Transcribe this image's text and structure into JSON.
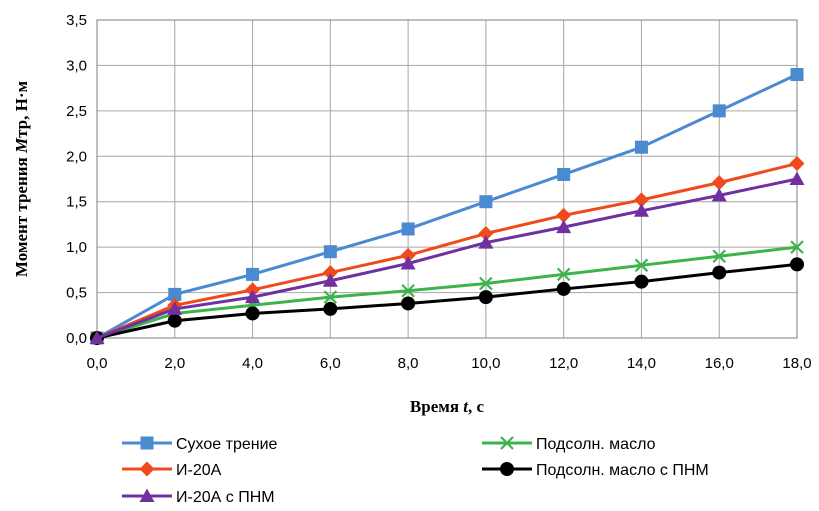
{
  "chart_data": {
    "type": "line",
    "title": "",
    "xlabel_parts": [
      "Время ",
      "t",
      ", с"
    ],
    "ylabel_parts": [
      "Момент трения ",
      "M",
      "тр, Н·м"
    ],
    "x": [
      0,
      2,
      4,
      6,
      8,
      10,
      12,
      14,
      16,
      18
    ],
    "xlim": [
      0,
      18
    ],
    "ylim": [
      0,
      3.5
    ],
    "xticks": [
      "0,0",
      "2,0",
      "4,0",
      "6,0",
      "8,0",
      "10,0",
      "12,0",
      "14,0",
      "16,0",
      "18,0"
    ],
    "yticks": [
      "0,0",
      "0,5",
      "1,0",
      "1,5",
      "2,0",
      "2,5",
      "3,0",
      "3,5"
    ],
    "grid": true,
    "legend_position": "bottom",
    "series": [
      {
        "name": "Сухое трение",
        "color": "#4a8ad0",
        "marker": "square",
        "values": [
          0,
          0.48,
          0.7,
          0.95,
          1.2,
          1.5,
          1.8,
          2.1,
          2.5,
          2.9
        ]
      },
      {
        "name": "Подсолн. масло",
        "color": "#3cb44b",
        "marker": "x",
        "values": [
          0,
          0.27,
          0.36,
          0.45,
          0.52,
          0.6,
          0.7,
          0.8,
          0.9,
          1.0
        ]
      },
      {
        "name": "И-20А",
        "color": "#f04a1c",
        "marker": "diamond",
        "values": [
          0,
          0.36,
          0.53,
          0.72,
          0.91,
          1.15,
          1.35,
          1.52,
          1.71,
          1.92
        ]
      },
      {
        "name": "Подсолн. масло с ПНМ",
        "color": "#000000",
        "marker": "circle",
        "values": [
          0,
          0.19,
          0.27,
          0.32,
          0.38,
          0.45,
          0.54,
          0.62,
          0.72,
          0.81
        ]
      },
      {
        "name": "И-20А с ПНМ",
        "color": "#7030a0",
        "marker": "triangle",
        "values": [
          0,
          0.32,
          0.45,
          0.63,
          0.82,
          1.05,
          1.22,
          1.4,
          1.57,
          1.75
        ]
      }
    ]
  }
}
